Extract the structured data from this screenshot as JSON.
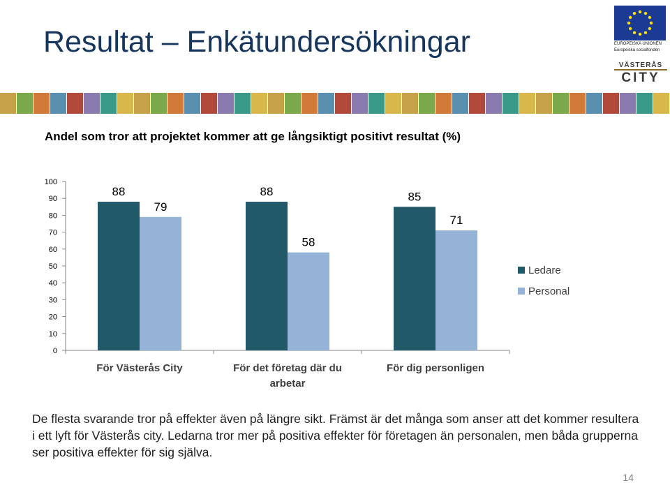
{
  "slide": {
    "title": "Resultat – Enkätundersökningar",
    "chart_heading": "Andel som tror att projektet kommer att ge långsiktigt positivt resultat (%)",
    "body_text": "De flesta svarande tror på effekter även på längre sikt. Främst är det många som anser att det kommer resultera i ett lyft för Västerås city. Ledarna tror mer på positiva effekter för företagen än personalen, men båda grupperna ser positiva effekter för sig själva.",
    "page_number": "14"
  },
  "logos": {
    "eu_caption_line1": "EUROPEISKA UNIONEN",
    "eu_caption_line2": "Europeiska socialfonden",
    "eu_icon": "eu-flag-icon",
    "city_line1": "VÄSTERÅS",
    "city_line2": "CITY",
    "city_icon": "city-skyline-icon"
  },
  "colors": {
    "title": "#17365d",
    "ledare": "#215968",
    "personal": "#95b3d7",
    "axis": "#868686"
  },
  "chart_data": {
    "type": "bar",
    "title": "Andel som tror att projektet kommer att ge långsiktigt positivt resultat (%)",
    "categories": [
      [
        "För Västerås City"
      ],
      [
        "För det företag där du",
        "arbetar"
      ],
      [
        "För dig personligen"
      ]
    ],
    "series": [
      {
        "name": "Ledare",
        "values": [
          88,
          88,
          85
        ]
      },
      {
        "name": "Personal",
        "values": [
          79,
          58,
          71
        ]
      }
    ],
    "ylim": [
      0,
      100
    ],
    "yticks": [
      0,
      10,
      20,
      30,
      40,
      50,
      60,
      70,
      80,
      90,
      100
    ],
    "xlabel": "",
    "ylabel": "",
    "grid": false,
    "legend_position": "right"
  }
}
